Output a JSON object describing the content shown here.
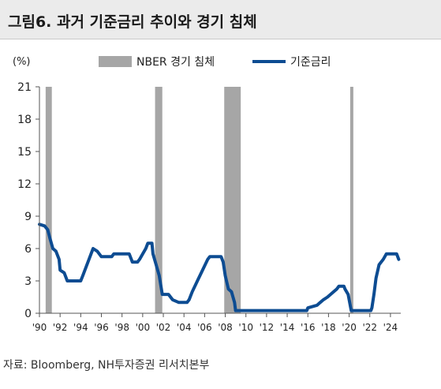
{
  "title": "그림6. 과거 기준금리 추이와 경기 침체",
  "source": "자료: Bloomberg, NH투자증권 리서치본부",
  "chart_data": {
    "type": "line",
    "ylabel": "(%)",
    "ylim": [
      0,
      21
    ],
    "yticks": [
      "0",
      "3",
      "6",
      "9",
      "12",
      "15",
      "18",
      "21"
    ],
    "xlim": [
      1990,
      2025
    ],
    "xticks": [
      "'90",
      "'92",
      "'94",
      "'96",
      "'98",
      "'00",
      "'02",
      "'04",
      "'06",
      "'08",
      "'10",
      "'12",
      "'14",
      "'16",
      "'18",
      "'20",
      "'22",
      "'24"
    ],
    "legend_position": "top",
    "legend": {
      "recession": "NBER 경기 침체",
      "rate": "기준금리"
    },
    "recessions": [
      [
        1990.6,
        1991.2
      ],
      [
        2001.2,
        2001.9
      ],
      [
        2007.9,
        2009.5
      ],
      [
        2020.1,
        2020.4
      ]
    ],
    "series": [
      {
        "name": "기준금리",
        "color": "#0d4c92",
        "points": [
          [
            1990.0,
            8.25
          ],
          [
            1990.5,
            8.1
          ],
          [
            1990.8,
            7.75
          ],
          [
            1991.0,
            7.0
          ],
          [
            1991.3,
            6.0
          ],
          [
            1991.6,
            5.75
          ],
          [
            1991.9,
            5.0
          ],
          [
            1992.0,
            4.0
          ],
          [
            1992.4,
            3.75
          ],
          [
            1992.7,
            3.0
          ],
          [
            1993.0,
            3.0
          ],
          [
            1993.5,
            3.0
          ],
          [
            1994.0,
            3.0
          ],
          [
            1994.2,
            3.5
          ],
          [
            1994.5,
            4.25
          ],
          [
            1994.8,
            5.0
          ],
          [
            1995.0,
            5.5
          ],
          [
            1995.2,
            6.0
          ],
          [
            1995.6,
            5.75
          ],
          [
            1996.0,
            5.25
          ],
          [
            1996.5,
            5.25
          ],
          [
            1997.0,
            5.25
          ],
          [
            1997.2,
            5.5
          ],
          [
            1997.6,
            5.5
          ],
          [
            1998.0,
            5.5
          ],
          [
            1998.7,
            5.5
          ],
          [
            1998.9,
            5.0
          ],
          [
            1999.0,
            4.75
          ],
          [
            1999.5,
            4.75
          ],
          [
            1999.7,
            5.0
          ],
          [
            2000.0,
            5.5
          ],
          [
            2000.3,
            6.0
          ],
          [
            2000.5,
            6.5
          ],
          [
            2000.9,
            6.5
          ],
          [
            2001.0,
            5.5
          ],
          [
            2001.3,
            4.5
          ],
          [
            2001.6,
            3.5
          ],
          [
            2001.9,
            1.75
          ],
          [
            2002.5,
            1.75
          ],
          [
            2002.9,
            1.25
          ],
          [
            2003.5,
            1.0
          ],
          [
            2004.3,
            1.0
          ],
          [
            2004.5,
            1.25
          ],
          [
            2004.8,
            2.0
          ],
          [
            2005.3,
            3.0
          ],
          [
            2005.8,
            4.0
          ],
          [
            2006.3,
            5.0
          ],
          [
            2006.5,
            5.25
          ],
          [
            2007.6,
            5.25
          ],
          [
            2007.8,
            4.75
          ],
          [
            2008.0,
            3.5
          ],
          [
            2008.3,
            2.25
          ],
          [
            2008.6,
            2.0
          ],
          [
            2008.9,
            1.0
          ],
          [
            2009.0,
            0.25
          ],
          [
            2015.9,
            0.25
          ],
          [
            2016.0,
            0.5
          ],
          [
            2016.9,
            0.75
          ],
          [
            2017.2,
            1.0
          ],
          [
            2017.5,
            1.25
          ],
          [
            2017.9,
            1.5
          ],
          [
            2018.2,
            1.75
          ],
          [
            2018.5,
            2.0
          ],
          [
            2018.8,
            2.25
          ],
          [
            2019.0,
            2.5
          ],
          [
            2019.5,
            2.5
          ],
          [
            2019.6,
            2.25
          ],
          [
            2019.9,
            1.75
          ],
          [
            2020.2,
            0.25
          ],
          [
            2022.1,
            0.25
          ],
          [
            2022.2,
            0.5
          ],
          [
            2022.4,
            1.75
          ],
          [
            2022.6,
            3.25
          ],
          [
            2022.9,
            4.5
          ],
          [
            2023.3,
            5.0
          ],
          [
            2023.6,
            5.5
          ],
          [
            2024.6,
            5.5
          ],
          [
            2024.8,
            5.0
          ]
        ]
      }
    ]
  }
}
